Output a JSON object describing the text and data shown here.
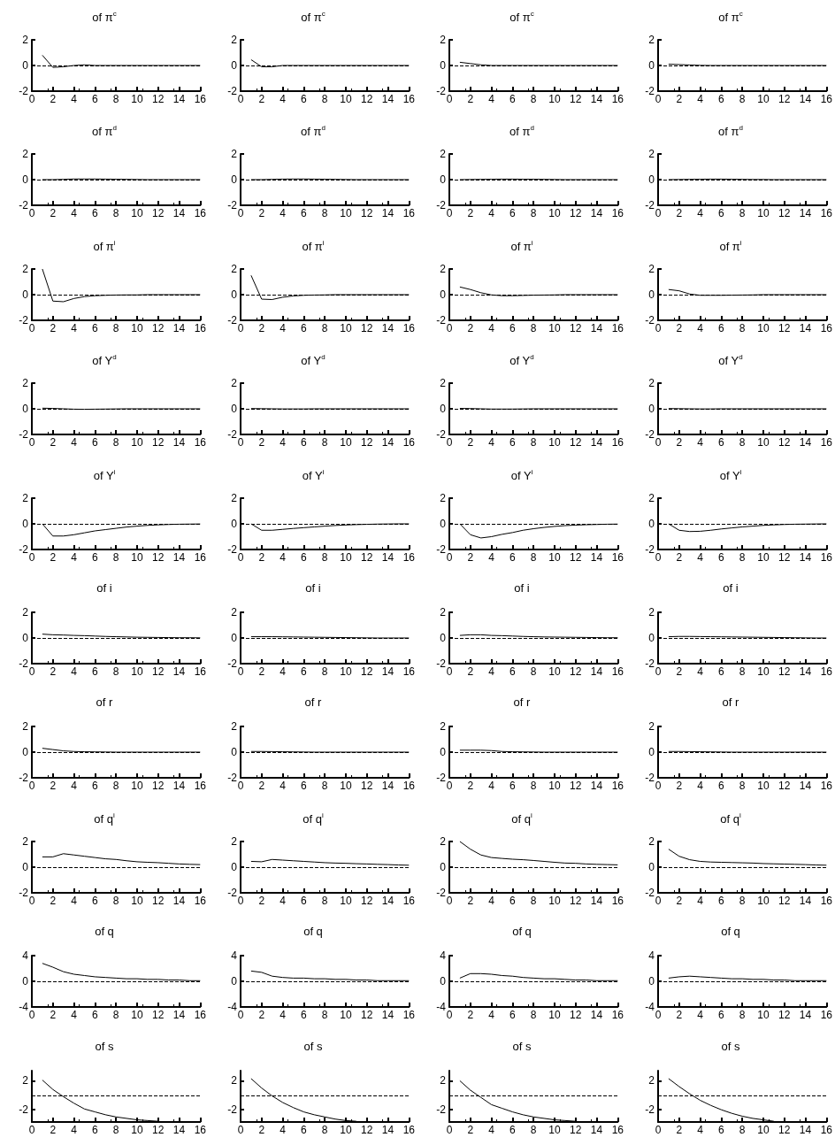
{
  "chart_data": [
    {
      "type": "line",
      "title": "of π$^{c}$",
      "color": "#000000",
      "x": [
        1,
        2,
        3,
        4,
        5,
        6,
        7,
        8,
        9,
        10,
        11,
        12,
        13,
        14,
        15,
        16
      ],
      "values": [
        0.8,
        -0.15,
        -0.1,
        0,
        0.05,
        0,
        0,
        0,
        0,
        0,
        0,
        0,
        0,
        0,
        0,
        0
      ],
      "xlim": [
        0,
        16
      ],
      "xticks": [
        0,
        2,
        4,
        6,
        8,
        10,
        12,
        14,
        16
      ],
      "ylim": [
        -2,
        2
      ],
      "yticks": [
        -2,
        0,
        2
      ],
      "ref_lines": [
        {
          "axis": "y",
          "value": 0,
          "line_style": "dashed"
        }
      ]
    },
    {
      "type": "line",
      "title": "of π$^{c}$",
      "color": "#000000",
      "x": [
        1,
        2,
        3,
        4,
        5,
        6,
        7,
        8,
        9,
        10,
        11,
        12,
        13,
        14,
        15,
        16
      ],
      "values": [
        0.45,
        -0.1,
        -0.1,
        0,
        0,
        0,
        0,
        0,
        0,
        0,
        0,
        0,
        0,
        0,
        0,
        0
      ],
      "xlim": [
        0,
        16
      ],
      "xticks": [
        0,
        2,
        4,
        6,
        8,
        10,
        12,
        14,
        16
      ],
      "ylim": [
        -2,
        2
      ],
      "yticks": [
        -2,
        0,
        2
      ],
      "ref_lines": [
        {
          "axis": "y",
          "value": 0,
          "line_style": "dashed"
        }
      ]
    },
    {
      "type": "line",
      "title": "of π$^{c}$",
      "color": "#000000",
      "x": [
        1,
        2,
        3,
        4,
        5,
        6,
        7,
        8,
        9,
        10,
        11,
        12,
        13,
        14,
        15,
        16
      ],
      "values": [
        0.25,
        0.15,
        0.05,
        0,
        0,
        0,
        0,
        0,
        0,
        0,
        0,
        0,
        0,
        0,
        0,
        0
      ],
      "xlim": [
        0,
        16
      ],
      "xticks": [
        0,
        2,
        4,
        6,
        8,
        10,
        12,
        14,
        16
      ],
      "ylim": [
        -2,
        2
      ],
      "yticks": [
        -2,
        0,
        2
      ],
      "ref_lines": [
        {
          "axis": "y",
          "value": 0,
          "line_style": "dashed"
        }
      ]
    },
    {
      "type": "line",
      "title": "of π$^{c}$",
      "color": "#000000",
      "x": [
        1,
        2,
        3,
        4,
        5,
        6,
        7,
        8,
        9,
        10,
        11,
        12,
        13,
        14,
        15,
        16
      ],
      "values": [
        0.1,
        0.07,
        0.04,
        0.01,
        0,
        0,
        0,
        0,
        0,
        0,
        0,
        0,
        0,
        0,
        0,
        0
      ],
      "xlim": [
        0,
        16
      ],
      "xticks": [
        0,
        2,
        4,
        6,
        8,
        10,
        12,
        14,
        16
      ],
      "ylim": [
        -2,
        2
      ],
      "yticks": [
        -2,
        0,
        2
      ],
      "ref_lines": [
        {
          "axis": "y",
          "value": 0,
          "line_style": "dashed"
        }
      ]
    },
    {
      "type": "line",
      "title": "of π$^{d}$",
      "color": "#000000",
      "x": [
        1,
        2,
        3,
        4,
        5,
        6,
        7,
        8,
        9,
        10,
        11,
        12,
        13,
        14,
        15,
        16
      ],
      "values": [
        0,
        0,
        0.02,
        0.05,
        0.05,
        0.05,
        0.04,
        0.03,
        0.02,
        0.01,
        0,
        0,
        0,
        0,
        0,
        0
      ],
      "xlim": [
        0,
        16
      ],
      "xticks": [
        0,
        2,
        4,
        6,
        8,
        10,
        12,
        14,
        16
      ],
      "ylim": [
        -2,
        2
      ],
      "yticks": [
        -2,
        0,
        2
      ],
      "ref_lines": [
        {
          "axis": "y",
          "value": 0,
          "line_style": "dashed"
        }
      ]
    },
    {
      "type": "line",
      "title": "of π$^{d}$",
      "color": "#000000",
      "x": [
        1,
        2,
        3,
        4,
        5,
        6,
        7,
        8,
        9,
        10,
        11,
        12,
        13,
        14,
        15,
        16
      ],
      "values": [
        0,
        0,
        0.02,
        0.04,
        0.05,
        0.05,
        0.04,
        0.03,
        0.02,
        0.01,
        0,
        0,
        0,
        0,
        0,
        0
      ],
      "xlim": [
        0,
        16
      ],
      "xticks": [
        0,
        2,
        4,
        6,
        8,
        10,
        12,
        14,
        16
      ],
      "ylim": [
        -2,
        2
      ],
      "yticks": [
        -2,
        0,
        2
      ],
      "ref_lines": [
        {
          "axis": "y",
          "value": 0,
          "line_style": "dashed"
        }
      ]
    },
    {
      "type": "line",
      "title": "of π$^{d}$",
      "color": "#000000",
      "x": [
        1,
        2,
        3,
        4,
        5,
        6,
        7,
        8,
        9,
        10,
        11,
        12,
        13,
        14,
        15,
        16
      ],
      "values": [
        0,
        0.01,
        0.02,
        0.03,
        0.04,
        0.04,
        0.03,
        0.03,
        0.02,
        0.01,
        0,
        0,
        0,
        0,
        0,
        0
      ],
      "xlim": [
        0,
        16
      ],
      "xticks": [
        0,
        2,
        4,
        6,
        8,
        10,
        12,
        14,
        16
      ],
      "ylim": [
        -2,
        2
      ],
      "yticks": [
        -2,
        0,
        2
      ],
      "ref_lines": [
        {
          "axis": "y",
          "value": 0,
          "line_style": "dashed"
        }
      ]
    },
    {
      "type": "line",
      "title": "of π$^{d}$",
      "color": "#000000",
      "x": [
        1,
        2,
        3,
        4,
        5,
        6,
        7,
        8,
        9,
        10,
        11,
        12,
        13,
        14,
        15,
        16
      ],
      "values": [
        0,
        0.01,
        0.02,
        0.03,
        0.04,
        0.04,
        0.03,
        0.02,
        0.01,
        0.01,
        0,
        0,
        0,
        0,
        0,
        0
      ],
      "xlim": [
        0,
        16
      ],
      "xticks": [
        0,
        2,
        4,
        6,
        8,
        10,
        12,
        14,
        16
      ],
      "ylim": [
        -2,
        2
      ],
      "yticks": [
        -2,
        0,
        2
      ],
      "ref_lines": [
        {
          "axis": "y",
          "value": 0,
          "line_style": "dashed"
        }
      ]
    },
    {
      "type": "line",
      "title": "of π$^{i}$",
      "color": "#000000",
      "x": [
        1,
        2,
        3,
        4,
        5,
        6,
        7,
        8,
        9,
        10,
        11,
        12,
        13,
        14,
        15,
        16
      ],
      "values": [
        2.0,
        -0.5,
        -0.55,
        -0.3,
        -0.15,
        -0.08,
        -0.05,
        -0.03,
        -0.02,
        -0.02,
        0,
        0,
        0,
        0,
        0,
        0
      ],
      "xlim": [
        0,
        16
      ],
      "xticks": [
        0,
        2,
        4,
        6,
        8,
        10,
        12,
        14,
        16
      ],
      "ylim": [
        -2,
        2
      ],
      "yticks": [
        -2,
        0,
        2
      ],
      "ref_lines": [
        {
          "axis": "y",
          "value": 0,
          "line_style": "dashed"
        }
      ]
    },
    {
      "type": "line",
      "title": "of π$^{i}$",
      "color": "#000000",
      "x": [
        1,
        2,
        3,
        4,
        5,
        6,
        7,
        8,
        9,
        10,
        11,
        12,
        13,
        14,
        15,
        16
      ],
      "values": [
        1.5,
        -0.35,
        -0.38,
        -0.2,
        -0.1,
        -0.05,
        -0.03,
        -0.02,
        0,
        0,
        0,
        0,
        0,
        0,
        0,
        0
      ],
      "xlim": [
        0,
        16
      ],
      "xticks": [
        0,
        2,
        4,
        6,
        8,
        10,
        12,
        14,
        16
      ],
      "ylim": [
        -2,
        2
      ],
      "yticks": [
        -2,
        0,
        2
      ],
      "ref_lines": [
        {
          "axis": "y",
          "value": 0,
          "line_style": "dashed"
        }
      ]
    },
    {
      "type": "line",
      "title": "of π$^{i}$",
      "color": "#000000",
      "x": [
        1,
        2,
        3,
        4,
        5,
        6,
        7,
        8,
        9,
        10,
        11,
        12,
        13,
        14,
        15,
        16
      ],
      "values": [
        0.6,
        0.4,
        0.15,
        -0.02,
        -0.08,
        -0.08,
        -0.06,
        -0.04,
        -0.03,
        -0.02,
        0,
        0,
        0,
        0,
        0,
        0
      ],
      "xlim": [
        0,
        16
      ],
      "xticks": [
        0,
        2,
        4,
        6,
        8,
        10,
        12,
        14,
        16
      ],
      "ylim": [
        -2,
        2
      ],
      "yticks": [
        -2,
        0,
        2
      ],
      "ref_lines": [
        {
          "axis": "y",
          "value": 0,
          "line_style": "dashed"
        }
      ]
    },
    {
      "type": "line",
      "title": "of π$^{i}$",
      "color": "#000000",
      "x": [
        1,
        2,
        3,
        4,
        5,
        6,
        7,
        8,
        9,
        10,
        11,
        12,
        13,
        14,
        15,
        16
      ],
      "values": [
        0.4,
        0.3,
        0.05,
        -0.05,
        -0.05,
        -0.05,
        -0.04,
        -0.03,
        -0.02,
        0,
        0,
        0,
        0,
        0,
        0,
        0
      ],
      "xlim": [
        0,
        16
      ],
      "xticks": [
        0,
        2,
        4,
        6,
        8,
        10,
        12,
        14,
        16
      ],
      "ylim": [
        -2,
        2
      ],
      "yticks": [
        -2,
        0,
        2
      ],
      "ref_lines": [
        {
          "axis": "y",
          "value": 0,
          "line_style": "dashed"
        }
      ]
    },
    {
      "type": "line",
      "title": "of Y$^{d}$",
      "color": "#000000",
      "x": [
        1,
        2,
        3,
        4,
        5,
        6,
        7,
        8,
        9,
        10,
        11,
        12,
        13,
        14,
        15,
        16
      ],
      "values": [
        0.05,
        0.03,
        0,
        -0.03,
        -0.04,
        -0.03,
        -0.02,
        -0.01,
        0,
        0,
        0,
        0,
        0,
        0,
        0,
        0
      ],
      "xlim": [
        0,
        16
      ],
      "xticks": [
        0,
        2,
        4,
        6,
        8,
        10,
        12,
        14,
        16
      ],
      "ylim": [
        -2,
        2
      ],
      "yticks": [
        -2,
        0,
        2
      ],
      "ref_lines": [
        {
          "axis": "y",
          "value": 0,
          "line_style": "dashed"
        }
      ]
    },
    {
      "type": "line",
      "title": "of Y$^{d}$",
      "color": "#000000",
      "x": [
        1,
        2,
        3,
        4,
        5,
        6,
        7,
        8,
        9,
        10,
        11,
        12,
        13,
        14,
        15,
        16
      ],
      "values": [
        0.02,
        0.01,
        0,
        -0.01,
        -0.01,
        -0.01,
        0,
        0,
        0,
        0,
        0,
        0,
        0,
        0,
        0,
        0
      ],
      "xlim": [
        0,
        16
      ],
      "xticks": [
        0,
        2,
        4,
        6,
        8,
        10,
        12,
        14,
        16
      ],
      "ylim": [
        -2,
        2
      ],
      "yticks": [
        -2,
        0,
        2
      ],
      "ref_lines": [
        {
          "axis": "y",
          "value": 0,
          "line_style": "dashed"
        }
      ]
    },
    {
      "type": "line",
      "title": "of Y$^{d}$",
      "color": "#000000",
      "x": [
        1,
        2,
        3,
        4,
        5,
        6,
        7,
        8,
        9,
        10,
        11,
        12,
        13,
        14,
        15,
        16
      ],
      "values": [
        0.03,
        0.02,
        0,
        -0.02,
        -0.02,
        -0.02,
        -0.01,
        0,
        0,
        0,
        0,
        0,
        0,
        0,
        0,
        0
      ],
      "xlim": [
        0,
        16
      ],
      "xticks": [
        0,
        2,
        4,
        6,
        8,
        10,
        12,
        14,
        16
      ],
      "ylim": [
        -2,
        2
      ],
      "yticks": [
        -2,
        0,
        2
      ],
      "ref_lines": [
        {
          "axis": "y",
          "value": 0,
          "line_style": "dashed"
        }
      ]
    },
    {
      "type": "line",
      "title": "of Y$^{d}$",
      "color": "#000000",
      "x": [
        1,
        2,
        3,
        4,
        5,
        6,
        7,
        8,
        9,
        10,
        11,
        12,
        13,
        14,
        15,
        16
      ],
      "values": [
        0.02,
        0.01,
        0,
        -0.01,
        -0.01,
        0,
        0,
        0,
        0,
        0,
        0,
        0,
        0,
        0,
        0,
        0
      ],
      "xlim": [
        0,
        16
      ],
      "xticks": [
        0,
        2,
        4,
        6,
        8,
        10,
        12,
        14,
        16
      ],
      "ylim": [
        -2,
        2
      ],
      "yticks": [
        -2,
        0,
        2
      ],
      "ref_lines": [
        {
          "axis": "y",
          "value": 0,
          "line_style": "dashed"
        }
      ]
    },
    {
      "type": "line",
      "title": "of Y$^{i}$",
      "color": "#000000",
      "x": [
        1,
        2,
        3,
        4,
        5,
        6,
        7,
        8,
        9,
        10,
        11,
        12,
        13,
        14,
        15,
        16
      ],
      "values": [
        0,
        -0.95,
        -0.95,
        -0.85,
        -0.7,
        -0.55,
        -0.45,
        -0.35,
        -0.25,
        -0.18,
        -0.12,
        -0.08,
        -0.05,
        -0.03,
        -0.02,
        -0.01
      ],
      "xlim": [
        0,
        16
      ],
      "xticks": [
        0,
        2,
        4,
        6,
        8,
        10,
        12,
        14,
        16
      ],
      "ylim": [
        -2,
        2
      ],
      "yticks": [
        -2,
        0,
        2
      ],
      "ref_lines": [
        {
          "axis": "y",
          "value": 0,
          "line_style": "dashed"
        }
      ]
    },
    {
      "type": "line",
      "title": "of Y$^{i}$",
      "color": "#000000",
      "x": [
        1,
        2,
        3,
        4,
        5,
        6,
        7,
        8,
        9,
        10,
        11,
        12,
        13,
        14,
        15,
        16
      ],
      "values": [
        0,
        -0.5,
        -0.5,
        -0.43,
        -0.36,
        -0.3,
        -0.24,
        -0.18,
        -0.13,
        -0.09,
        -0.06,
        -0.04,
        -0.02,
        -0.01,
        0,
        0
      ],
      "xlim": [
        0,
        16
      ],
      "xticks": [
        0,
        2,
        4,
        6,
        8,
        10,
        12,
        14,
        16
      ],
      "ylim": [
        -2,
        2
      ],
      "yticks": [
        -2,
        0,
        2
      ],
      "ref_lines": [
        {
          "axis": "y",
          "value": 0,
          "line_style": "dashed"
        }
      ]
    },
    {
      "type": "line",
      "title": "of Y$^{i}$",
      "color": "#000000",
      "x": [
        1,
        2,
        3,
        4,
        5,
        6,
        7,
        8,
        9,
        10,
        11,
        12,
        13,
        14,
        15,
        16
      ],
      "values": [
        0,
        -0.85,
        -1.1,
        -1.0,
        -0.82,
        -0.68,
        -0.5,
        -0.38,
        -0.28,
        -0.2,
        -0.14,
        -0.1,
        -0.07,
        -0.05,
        -0.03,
        -0.02
      ],
      "xlim": [
        0,
        16
      ],
      "xticks": [
        0,
        2,
        4,
        6,
        8,
        10,
        12,
        14,
        16
      ],
      "ylim": [
        -2,
        2
      ],
      "yticks": [
        -2,
        0,
        2
      ],
      "ref_lines": [
        {
          "axis": "y",
          "value": 0,
          "line_style": "dashed"
        }
      ]
    },
    {
      "type": "line",
      "title": "of Y$^{i}$",
      "color": "#000000",
      "x": [
        1,
        2,
        3,
        4,
        5,
        6,
        7,
        8,
        9,
        10,
        11,
        12,
        13,
        14,
        15,
        16
      ],
      "values": [
        0,
        -0.5,
        -0.6,
        -0.58,
        -0.5,
        -0.4,
        -0.32,
        -0.24,
        -0.18,
        -0.12,
        -0.08,
        -0.05,
        -0.03,
        -0.02,
        -0.01,
        0
      ],
      "xlim": [
        0,
        16
      ],
      "xticks": [
        0,
        2,
        4,
        6,
        8,
        10,
        12,
        14,
        16
      ],
      "ylim": [
        -2,
        2
      ],
      "yticks": [
        -2,
        0,
        2
      ],
      "ref_lines": [
        {
          "axis": "y",
          "value": 0,
          "line_style": "dashed"
        }
      ]
    },
    {
      "type": "line",
      "title": "of i",
      "color": "#000000",
      "x": [
        1,
        2,
        3,
        4,
        5,
        6,
        7,
        8,
        9,
        10,
        11,
        12,
        13,
        14,
        15,
        16
      ],
      "values": [
        0.3,
        0.25,
        0.23,
        0.2,
        0.18,
        0.15,
        0.12,
        0.1,
        0.08,
        0.06,
        0.05,
        0.04,
        0.03,
        0.02,
        0.02,
        0.01
      ],
      "xlim": [
        0,
        16
      ],
      "xticks": [
        0,
        2,
        4,
        6,
        8,
        10,
        12,
        14,
        16
      ],
      "ylim": [
        -2,
        2
      ],
      "yticks": [
        -2,
        0,
        2
      ],
      "ref_lines": [
        {
          "axis": "y",
          "value": 0,
          "line_style": "dashed"
        }
      ]
    },
    {
      "type": "line",
      "title": "of i",
      "color": "#000000",
      "x": [
        1,
        2,
        3,
        4,
        5,
        6,
        7,
        8,
        9,
        10,
        11,
        12,
        13,
        14,
        15,
        16
      ],
      "values": [
        0.1,
        0.1,
        0.1,
        0.09,
        0.08,
        0.07,
        0.06,
        0.05,
        0.04,
        0.03,
        0.02,
        0.01,
        0,
        0,
        0,
        0
      ],
      "xlim": [
        0,
        16
      ],
      "xticks": [
        0,
        2,
        4,
        6,
        8,
        10,
        12,
        14,
        16
      ],
      "ylim": [
        -2,
        2
      ],
      "yticks": [
        -2,
        0,
        2
      ],
      "ref_lines": [
        {
          "axis": "y",
          "value": 0,
          "line_style": "dashed"
        }
      ]
    },
    {
      "type": "line",
      "title": "of i",
      "color": "#000000",
      "x": [
        1,
        2,
        3,
        4,
        5,
        6,
        7,
        8,
        9,
        10,
        11,
        12,
        13,
        14,
        15,
        16
      ],
      "values": [
        0.2,
        0.25,
        0.25,
        0.2,
        0.18,
        0.15,
        0.12,
        0.1,
        0.08,
        0.07,
        0.06,
        0.05,
        0.04,
        0.03,
        0.02,
        0.02
      ],
      "xlim": [
        0,
        16
      ],
      "xticks": [
        0,
        2,
        4,
        6,
        8,
        10,
        12,
        14,
        16
      ],
      "ylim": [
        -2,
        2
      ],
      "yticks": [
        -2,
        0,
        2
      ],
      "ref_lines": [
        {
          "axis": "y",
          "value": 0,
          "line_style": "dashed"
        }
      ]
    },
    {
      "type": "line",
      "title": "of i",
      "color": "#000000",
      "x": [
        1,
        2,
        3,
        4,
        5,
        6,
        7,
        8,
        9,
        10,
        11,
        12,
        13,
        14,
        15,
        16
      ],
      "values": [
        0.1,
        0.12,
        0.12,
        0.11,
        0.1,
        0.09,
        0.08,
        0.07,
        0.06,
        0.05,
        0.04,
        0.03,
        0.02,
        0.01,
        0,
        0
      ],
      "xlim": [
        0,
        16
      ],
      "xticks": [
        0,
        2,
        4,
        6,
        8,
        10,
        12,
        14,
        16
      ],
      "ylim": [
        -2,
        2
      ],
      "yticks": [
        -2,
        0,
        2
      ],
      "ref_lines": [
        {
          "axis": "y",
          "value": 0,
          "line_style": "dashed"
        }
      ]
    },
    {
      "type": "line",
      "title": "of r",
      "color": "#000000",
      "x": [
        1,
        2,
        3,
        4,
        5,
        6,
        7,
        8,
        9,
        10,
        11,
        12,
        13,
        14,
        15,
        16
      ],
      "values": [
        0.3,
        0.2,
        0.1,
        0.05,
        0.03,
        0.02,
        0.01,
        0,
        0,
        0,
        0,
        0,
        0,
        0,
        0,
        0
      ],
      "xlim": [
        0,
        16
      ],
      "xticks": [
        0,
        2,
        4,
        6,
        8,
        10,
        12,
        14,
        16
      ],
      "ylim": [
        -2,
        2
      ],
      "yticks": [
        -2,
        0,
        2
      ],
      "ref_lines": [
        {
          "axis": "y",
          "value": 0,
          "line_style": "dashed"
        }
      ]
    },
    {
      "type": "line",
      "title": "of r",
      "color": "#000000",
      "x": [
        1,
        2,
        3,
        4,
        5,
        6,
        7,
        8,
        9,
        10,
        11,
        12,
        13,
        14,
        15,
        16
      ],
      "values": [
        0.05,
        0.05,
        0.04,
        0.03,
        0.02,
        0.01,
        0,
        0,
        0,
        0,
        0,
        0,
        0,
        0,
        0,
        0
      ],
      "xlim": [
        0,
        16
      ],
      "xticks": [
        0,
        2,
        4,
        6,
        8,
        10,
        12,
        14,
        16
      ],
      "ylim": [
        -2,
        2
      ],
      "yticks": [
        -2,
        0,
        2
      ],
      "ref_lines": [
        {
          "axis": "y",
          "value": 0,
          "line_style": "dashed"
        }
      ]
    },
    {
      "type": "line",
      "title": "of r",
      "color": "#000000",
      "x": [
        1,
        2,
        3,
        4,
        5,
        6,
        7,
        8,
        9,
        10,
        11,
        12,
        13,
        14,
        15,
        16
      ],
      "values": [
        0.15,
        0.15,
        0.15,
        0.12,
        0.05,
        0.03,
        0.02,
        0.01,
        0,
        0,
        0,
        0,
        0,
        0,
        0,
        0
      ],
      "xlim": [
        0,
        16
      ],
      "xticks": [
        0,
        2,
        4,
        6,
        8,
        10,
        12,
        14,
        16
      ],
      "ylim": [
        -2,
        2
      ],
      "yticks": [
        -2,
        0,
        2
      ],
      "ref_lines": [
        {
          "axis": "y",
          "value": 0,
          "line_style": "dashed"
        }
      ]
    },
    {
      "type": "line",
      "title": "of r",
      "color": "#000000",
      "x": [
        1,
        2,
        3,
        4,
        5,
        6,
        7,
        8,
        9,
        10,
        11,
        12,
        13,
        14,
        15,
        16
      ],
      "values": [
        0.05,
        0.05,
        0.04,
        0.03,
        0.02,
        0.01,
        0,
        0,
        0,
        0,
        0,
        0,
        0,
        0,
        0,
        0
      ],
      "xlim": [
        0,
        16
      ],
      "xticks": [
        0,
        2,
        4,
        6,
        8,
        10,
        12,
        14,
        16
      ],
      "ylim": [
        -2,
        2
      ],
      "yticks": [
        -2,
        0,
        2
      ],
      "ref_lines": [
        {
          "axis": "y",
          "value": 0,
          "line_style": "dashed"
        }
      ]
    },
    {
      "type": "line",
      "title": "of q$^{i}$",
      "color": "#000000",
      "x": [
        1,
        2,
        3,
        4,
        5,
        6,
        7,
        8,
        9,
        10,
        11,
        12,
        13,
        14,
        15,
        16
      ],
      "values": [
        0.8,
        0.8,
        1.05,
        0.95,
        0.85,
        0.75,
        0.65,
        0.6,
        0.5,
        0.42,
        0.38,
        0.35,
        0.3,
        0.25,
        0.22,
        0.2
      ],
      "xlim": [
        0,
        16
      ],
      "xticks": [
        0,
        2,
        4,
        6,
        8,
        10,
        12,
        14,
        16
      ],
      "ylim": [
        -2,
        2
      ],
      "yticks": [
        -2,
        0,
        2
      ],
      "ref_lines": [
        {
          "axis": "y",
          "value": 0,
          "line_style": "dashed"
        }
      ]
    },
    {
      "type": "line",
      "title": "of q$^{i}$",
      "color": "#000000",
      "x": [
        1,
        2,
        3,
        4,
        5,
        6,
        7,
        8,
        9,
        10,
        11,
        12,
        13,
        14,
        15,
        16
      ],
      "values": [
        0.45,
        0.42,
        0.6,
        0.55,
        0.5,
        0.45,
        0.4,
        0.35,
        0.32,
        0.3,
        0.27,
        0.25,
        0.22,
        0.2,
        0.17,
        0.15
      ],
      "xlim": [
        0,
        16
      ],
      "xticks": [
        0,
        2,
        4,
        6,
        8,
        10,
        12,
        14,
        16
      ],
      "ylim": [
        -2,
        2
      ],
      "yticks": [
        -2,
        0,
        2
      ],
      "ref_lines": [
        {
          "axis": "y",
          "value": 0,
          "line_style": "dashed"
        }
      ]
    },
    {
      "type": "line",
      "title": "of q$^{i}$",
      "color": "#000000",
      "x": [
        1,
        2,
        3,
        4,
        5,
        6,
        7,
        8,
        9,
        10,
        11,
        12,
        13,
        14,
        15,
        16
      ],
      "values": [
        2.0,
        1.4,
        0.95,
        0.75,
        0.68,
        0.62,
        0.58,
        0.52,
        0.45,
        0.38,
        0.32,
        0.3,
        0.25,
        0.22,
        0.2,
        0.18
      ],
      "xlim": [
        0,
        16
      ],
      "xticks": [
        0,
        2,
        4,
        6,
        8,
        10,
        12,
        14,
        16
      ],
      "ylim": [
        -2,
        2
      ],
      "yticks": [
        -2,
        0,
        2
      ],
      "ref_lines": [
        {
          "axis": "y",
          "value": 0,
          "line_style": "dashed"
        }
      ]
    },
    {
      "type": "line",
      "title": "of q$^{i}$",
      "color": "#000000",
      "x": [
        1,
        2,
        3,
        4,
        5,
        6,
        7,
        8,
        9,
        10,
        11,
        12,
        13,
        14,
        15,
        16
      ],
      "values": [
        1.4,
        0.85,
        0.58,
        0.45,
        0.4,
        0.38,
        0.36,
        0.34,
        0.32,
        0.28,
        0.26,
        0.24,
        0.22,
        0.2,
        0.17,
        0.15
      ],
      "xlim": [
        0,
        16
      ],
      "xticks": [
        0,
        2,
        4,
        6,
        8,
        10,
        12,
        14,
        16
      ],
      "ylim": [
        -2,
        2
      ],
      "yticks": [
        -2,
        0,
        2
      ],
      "ref_lines": [
        {
          "axis": "y",
          "value": 0,
          "line_style": "dashed"
        }
      ]
    },
    {
      "type": "line",
      "title": "of q",
      "color": "#000000",
      "x": [
        1,
        2,
        3,
        4,
        5,
        6,
        7,
        8,
        9,
        10,
        11,
        12,
        13,
        14,
        15,
        16
      ],
      "values": [
        2.8,
        2.2,
        1.5,
        1.1,
        0.9,
        0.7,
        0.6,
        0.5,
        0.4,
        0.4,
        0.3,
        0.3,
        0.2,
        0.2,
        0.1,
        0.1
      ],
      "xlim": [
        0,
        16
      ],
      "xticks": [
        0,
        2,
        4,
        6,
        8,
        10,
        12,
        14,
        16
      ],
      "ylim": [
        -4,
        4
      ],
      "yticks": [
        -4,
        0,
        4
      ],
      "ref_lines": [
        {
          "axis": "y",
          "value": 0,
          "line_style": "dashed"
        }
      ]
    },
    {
      "type": "line",
      "title": "of q",
      "color": "#000000",
      "x": [
        1,
        2,
        3,
        4,
        5,
        6,
        7,
        8,
        9,
        10,
        11,
        12,
        13,
        14,
        15,
        16
      ],
      "values": [
        1.6,
        1.4,
        0.8,
        0.6,
        0.5,
        0.5,
        0.4,
        0.4,
        0.3,
        0.3,
        0.2,
        0.2,
        0.1,
        0.1,
        0.1,
        0.1
      ],
      "xlim": [
        0,
        16
      ],
      "xticks": [
        0,
        2,
        4,
        6,
        8,
        10,
        12,
        14,
        16
      ],
      "ylim": [
        -4,
        4
      ],
      "yticks": [
        -4,
        0,
        4
      ],
      "ref_lines": [
        {
          "axis": "y",
          "value": 0,
          "line_style": "dashed"
        }
      ]
    },
    {
      "type": "line",
      "title": "of q",
      "color": "#000000",
      "x": [
        1,
        2,
        3,
        4,
        5,
        6,
        7,
        8,
        9,
        10,
        11,
        12,
        13,
        14,
        15,
        16
      ],
      "values": [
        0.5,
        1.2,
        1.2,
        1.1,
        0.9,
        0.8,
        0.6,
        0.5,
        0.4,
        0.4,
        0.3,
        0.2,
        0.2,
        0.1,
        0.1,
        0.1
      ],
      "xlim": [
        0,
        16
      ],
      "xticks": [
        0,
        2,
        4,
        6,
        8,
        10,
        12,
        14,
        16
      ],
      "ylim": [
        -4,
        4
      ],
      "yticks": [
        -4,
        0,
        4
      ],
      "ref_lines": [
        {
          "axis": "y",
          "value": 0,
          "line_style": "dashed"
        }
      ]
    },
    {
      "type": "line",
      "title": "of q",
      "color": "#000000",
      "x": [
        1,
        2,
        3,
        4,
        5,
        6,
        7,
        8,
        9,
        10,
        11,
        12,
        13,
        14,
        15,
        16
      ],
      "values": [
        0.5,
        0.7,
        0.8,
        0.7,
        0.6,
        0.5,
        0.4,
        0.4,
        0.3,
        0.3,
        0.2,
        0.2,
        0.1,
        0.1,
        0.1,
        0.1
      ],
      "xlim": [
        0,
        16
      ],
      "xticks": [
        0,
        2,
        4,
        6,
        8,
        10,
        12,
        14,
        16
      ],
      "ylim": [
        -4,
        4
      ],
      "yticks": [
        -4,
        0,
        4
      ],
      "ref_lines": [
        {
          "axis": "y",
          "value": 0,
          "line_style": "dashed"
        }
      ]
    },
    {
      "type": "line",
      "title": "of s",
      "color": "#000000",
      "x": [
        1,
        2,
        3,
        4,
        5,
        6,
        7,
        8,
        9,
        10,
        11,
        12
      ],
      "values": [
        2.1,
        0.8,
        -0.2,
        -1.1,
        -1.9,
        -2.3,
        -2.7,
        -3.0,
        -3.2,
        -3.4,
        -3.5,
        -3.6
      ],
      "xlim": [
        0,
        16
      ],
      "xticks": [
        0,
        2,
        4,
        6,
        8,
        10,
        12,
        14,
        16
      ],
      "ylim": [
        -3.7,
        3.4
      ],
      "yticks": [
        -2,
        2
      ],
      "ref_lines": [
        {
          "axis": "y",
          "value": 0,
          "line_style": "dashed"
        }
      ]
    },
    {
      "type": "line",
      "title": "of s",
      "color": "#000000",
      "x": [
        1,
        2,
        3,
        4,
        5,
        6,
        7,
        8,
        9,
        10,
        11
      ],
      "values": [
        2.3,
        1.0,
        -0.1,
        -1.0,
        -1.7,
        -2.3,
        -2.7,
        -3.0,
        -3.3,
        -3.5,
        -3.6
      ],
      "xlim": [
        0,
        16
      ],
      "xticks": [
        0,
        2,
        4,
        6,
        8,
        10,
        12,
        14,
        16
      ],
      "ylim": [
        -3.7,
        3.4
      ],
      "yticks": [
        -2,
        2
      ],
      "ref_lines": [
        {
          "axis": "y",
          "value": 0,
          "line_style": "dashed"
        }
      ]
    },
    {
      "type": "line",
      "title": "of s",
      "color": "#000000",
      "x": [
        1,
        2,
        3,
        4,
        5,
        6,
        7,
        8,
        9,
        10,
        11,
        12
      ],
      "values": [
        2.0,
        0.7,
        -0.3,
        -1.3,
        -1.8,
        -2.3,
        -2.7,
        -3.0,
        -3.2,
        -3.4,
        -3.5,
        -3.6
      ],
      "xlim": [
        0,
        16
      ],
      "xticks": [
        0,
        2,
        4,
        6,
        8,
        10,
        12,
        14,
        16
      ],
      "ylim": [
        -3.7,
        3.4
      ],
      "yticks": [
        -2,
        2
      ],
      "ref_lines": [
        {
          "axis": "y",
          "value": 0,
          "line_style": "dashed"
        }
      ]
    },
    {
      "type": "line",
      "title": "of s",
      "color": "#000000",
      "x": [
        1,
        2,
        3,
        4,
        5,
        6,
        7,
        8,
        9,
        10,
        11
      ],
      "values": [
        2.3,
        1.2,
        0.2,
        -0.7,
        -1.4,
        -2.0,
        -2.5,
        -2.9,
        -3.2,
        -3.4,
        -3.6
      ],
      "xlim": [
        0,
        16
      ],
      "xticks": [
        0,
        2,
        4,
        6,
        8,
        10,
        12,
        14,
        16
      ],
      "ylim": [
        -3.7,
        3.4
      ],
      "yticks": [
        -2,
        2
      ],
      "ref_lines": [
        {
          "axis": "y",
          "value": 0,
          "line_style": "dashed"
        }
      ]
    }
  ]
}
